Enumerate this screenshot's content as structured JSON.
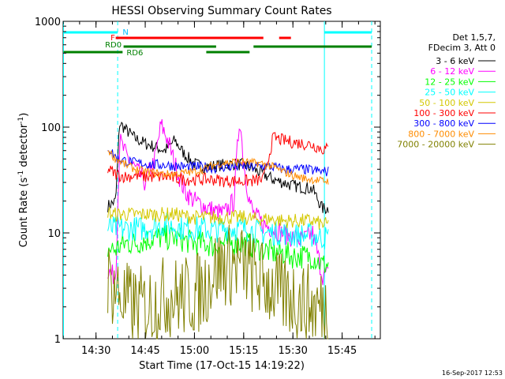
{
  "chart_data": {
    "type": "line",
    "title": "HESSI Observing Summary Count Rates",
    "xlabel": "Start Time (17-Oct-15 14:19:22)",
    "ylabel_main": "Count Rate (s",
    "ylabel_sup1": "-1",
    "ylabel_mid": " detector",
    "ylabel_sup2": "-1",
    "ylabel_end": ")",
    "yscale": "log",
    "ylim": [
      1,
      1000
    ],
    "xlim_minutes": [
      14.333,
      15.944
    ],
    "x_ticks": [
      {
        "label": "14:30",
        "value": 14.5
      },
      {
        "label": "14:45",
        "value": 14.75
      },
      {
        "label": "15:00",
        "value": 15.0
      },
      {
        "label": "15:15",
        "value": 15.25
      },
      {
        "label": "15:30",
        "value": 15.5
      },
      {
        "label": "15:45",
        "value": 15.75
      }
    ],
    "y_ticks": [
      {
        "label": "1",
        "value": 1
      },
      {
        "label": "10",
        "value": 10
      },
      {
        "label": "100",
        "value": 100
      },
      {
        "label": "1000",
        "value": 1000
      }
    ],
    "legend": {
      "placement": "right",
      "header": [
        "Det 1,5,7,",
        "FDecim 3, Att 0"
      ],
      "entries": [
        {
          "label": "3 - 6 keV",
          "color": "#000000"
        },
        {
          "label": "6 - 12 keV",
          "color": "#ff00ff"
        },
        {
          "label": "12 - 25 keV",
          "color": "#00ff00"
        },
        {
          "label": "25 - 50 keV",
          "color": "#00ffff"
        },
        {
          "label": "50 - 100 keV",
          "color": "#d4c800"
        },
        {
          "label": "100 - 300 keV",
          "color": "#ff0000"
        },
        {
          "label": "300 - 800 keV",
          "color": "#0000ff"
        },
        {
          "label": "800 - 7000 keV",
          "color": "#ff8c00"
        },
        {
          "label": "7000 - 20000 keV",
          "color": "#808000"
        }
      ]
    },
    "flag_labels": {
      "night": "N",
      "flare": "F",
      "rd0": "RD0",
      "rd6": "RD6"
    },
    "flag_segments": {
      "night": [
        [
          14.335,
          14.61
        ],
        [
          15.66,
          15.9
        ]
      ],
      "flare": [
        [
          14.6,
          15.35
        ],
        [
          15.43,
          15.49
        ]
      ],
      "rd0": [
        [
          14.64,
          15.11
        ],
        [
          15.3,
          15.9
        ]
      ],
      "rd6": [
        [
          14.335,
          14.635
        ],
        [
          15.06,
          15.28
        ]
      ]
    },
    "vertical_lines": [
      {
        "x": 14.335,
        "color": "#00ffff",
        "style": "solid"
      },
      {
        "x": 14.61,
        "color": "#00ffff",
        "style": "dashed"
      },
      {
        "x": 15.66,
        "color": "#00ffff",
        "style": "solid"
      },
      {
        "x": 15.9,
        "color": "#00ffff",
        "style": "dashed"
      }
    ],
    "data_window": [
      14.56,
      15.68
    ],
    "series": [
      {
        "name": "3 - 6 keV",
        "color": "#000000",
        "x": [
          14.56,
          14.58,
          14.6,
          14.62,
          14.65,
          14.7,
          14.75,
          14.8,
          14.85,
          14.9,
          14.95,
          15.0,
          15.05,
          15.1,
          15.15,
          15.2,
          15.25,
          15.3,
          15.35,
          15.4,
          15.45,
          15.5,
          15.55,
          15.6,
          15.65,
          15.68
        ],
        "y": [
          18,
          19,
          20,
          110,
          95,
          78,
          70,
          65,
          60,
          75,
          55,
          45,
          42,
          43,
          44,
          45,
          44,
          40,
          36,
          32,
          30,
          28,
          27,
          26,
          17,
          17
        ]
      },
      {
        "name": "6 - 12 keV",
        "color": "#ff00ff",
        "x": [
          14.56,
          14.58,
          14.6,
          14.62,
          14.65,
          14.7,
          14.75,
          14.8,
          14.83,
          14.86,
          14.9,
          14.95,
          15.0,
          15.05,
          15.1,
          15.15,
          15.2,
          15.23,
          15.25,
          15.28,
          15.3,
          15.35,
          15.4,
          15.45,
          15.5,
          15.55,
          15.6,
          15.65,
          15.68
        ],
        "y": [
          4.5,
          4,
          4,
          75,
          55,
          40,
          30,
          50,
          105,
          80,
          45,
          25,
          20,
          18,
          16,
          15,
          20,
          130,
          45,
          20,
          15,
          12,
          11,
          10,
          9,
          8.5,
          10,
          4,
          4
        ]
      },
      {
        "name": "12 - 25 keV",
        "color": "#00ff00",
        "x": [
          14.56,
          14.58,
          14.6,
          14.62,
          14.65,
          14.7,
          14.75,
          14.8,
          14.85,
          14.9,
          14.95,
          15.0,
          15.05,
          15.1,
          15.15,
          15.2,
          15.25,
          15.3,
          15.35,
          15.4,
          15.45,
          15.5,
          15.55,
          15.6,
          15.65,
          15.68
        ],
        "y": [
          7,
          7,
          7,
          7.5,
          8,
          8,
          8.5,
          9,
          9,
          9,
          8.5,
          8,
          8,
          7.5,
          8,
          8,
          8,
          7.5,
          7,
          6.5,
          6.5,
          6,
          6,
          6,
          5,
          5
        ]
      },
      {
        "name": "25 - 50 keV",
        "color": "#00ffff",
        "x": [
          14.56,
          14.58,
          14.6,
          14.62,
          14.65,
          14.7,
          14.75,
          14.8,
          14.85,
          14.9,
          14.95,
          15.0,
          15.05,
          15.1,
          15.15,
          15.2,
          15.25,
          15.3,
          15.35,
          15.4,
          15.45,
          15.5,
          15.55,
          15.6,
          15.65,
          15.68
        ],
        "y": [
          11,
          11,
          11,
          11,
          11,
          11,
          11,
          11.5,
          12,
          11.5,
          11,
          11,
          11,
          10.5,
          11,
          11,
          11,
          10.5,
          10,
          10,
          10,
          9.5,
          9.5,
          9.5,
          9,
          9
        ]
      },
      {
        "name": "50 - 100 keV",
        "color": "#d4c800",
        "x": [
          14.56,
          14.58,
          14.6,
          14.62,
          14.65,
          14.7,
          14.75,
          14.8,
          14.85,
          14.9,
          14.95,
          15.0,
          15.05,
          15.1,
          15.15,
          15.2,
          15.25,
          15.3,
          15.35,
          15.4,
          15.45,
          15.5,
          15.55,
          15.6,
          15.65,
          15.68
        ],
        "y": [
          16,
          15,
          15,
          15,
          15,
          15,
          15,
          15,
          15,
          15,
          14.5,
          14,
          14,
          14,
          14,
          14,
          14,
          13.5,
          13.5,
          13.5,
          13,
          13,
          13,
          13,
          12,
          12
        ]
      },
      {
        "name": "100 - 300 keV",
        "color": "#ff0000",
        "x": [
          14.56,
          14.58,
          14.6,
          14.62,
          14.65,
          14.7,
          14.75,
          14.8,
          14.85,
          14.9,
          14.95,
          15.0,
          15.05,
          15.1,
          15.15,
          15.2,
          15.25,
          15.3,
          15.35,
          15.4,
          15.45,
          15.5,
          15.55,
          15.6,
          15.65,
          15.68
        ],
        "y": [
          40,
          38,
          36,
          35,
          34,
          35,
          34,
          34,
          34,
          33,
          32,
          32,
          32,
          32,
          31,
          31,
          31,
          31,
          32,
          80,
          75,
          72,
          70,
          68,
          62,
          62
        ]
      },
      {
        "name": "300 - 800 keV",
        "color": "#0000ff",
        "x": [
          14.56,
          14.58,
          14.6,
          14.62,
          14.65,
          14.7,
          14.75,
          14.8,
          14.85,
          14.9,
          14.95,
          15.0,
          15.05,
          15.1,
          15.15,
          15.2,
          15.25,
          15.3,
          15.35,
          15.4,
          15.45,
          15.5,
          15.55,
          15.6,
          15.65,
          15.68
        ],
        "y": [
          65,
          58,
          52,
          50,
          48,
          46,
          45,
          44,
          44,
          43,
          42,
          42,
          42,
          41,
          42,
          42,
          43,
          42,
          43,
          42,
          40,
          40,
          40,
          39,
          38,
          38
        ]
      },
      {
        "name": "800 - 7000 keV",
        "color": "#ff8c00",
        "x": [
          14.56,
          14.58,
          14.6,
          14.62,
          14.65,
          14.7,
          14.75,
          14.8,
          14.85,
          14.9,
          14.95,
          15.0,
          15.05,
          15.1,
          15.15,
          15.2,
          15.25,
          15.3,
          15.35,
          15.4,
          15.45,
          15.5,
          15.55,
          15.6,
          15.65,
          15.68
        ],
        "y": [
          62,
          55,
          50,
          48,
          44,
          40,
          38,
          37,
          36,
          36,
          37,
          38,
          40,
          44,
          46,
          47,
          47,
          46,
          45,
          42,
          38,
          35,
          33,
          32,
          31,
          31
        ]
      },
      {
        "name": "7000 - 20000 keV",
        "color": "#808000",
        "x": [
          14.56,
          14.58,
          14.6,
          14.62,
          14.65,
          14.7,
          14.75,
          14.8,
          14.85,
          14.9,
          14.95,
          15.0,
          15.05,
          15.1,
          15.15,
          15.2,
          15.25,
          15.3,
          15.35,
          15.4,
          15.45,
          15.5,
          15.55,
          15.6,
          15.65,
          15.68
        ],
        "y": [
          3.5,
          3.2,
          3.0,
          2.5,
          2.2,
          2.0,
          2.0,
          2.2,
          2.5,
          2.5,
          2.5,
          2.6,
          3.0,
          4.5,
          5.0,
          5.0,
          5.0,
          4.0,
          3.5,
          3.0,
          2.5,
          2.5,
          2.2,
          2.0,
          2.0,
          2.0
        ]
      }
    ]
  },
  "footer": {
    "timestamp": "16-Sep-2017 12:53"
  }
}
